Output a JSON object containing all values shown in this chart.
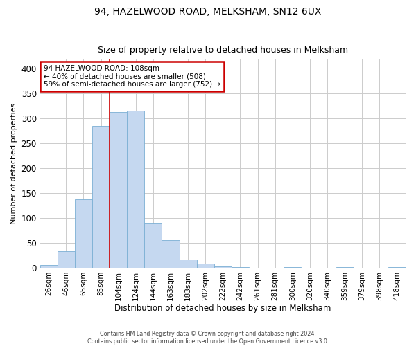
{
  "title": "94, HAZELWOOD ROAD, MELKSHAM, SN12 6UX",
  "subtitle": "Size of property relative to detached houses in Melksham",
  "xlabel": "Distribution of detached houses by size in Melksham",
  "ylabel": "Number of detached properties",
  "bar_color": "#c5d8f0",
  "bar_edge_color": "#7bafd4",
  "background_color": "#ffffff",
  "grid_color": "#cccccc",
  "annotation_line_color": "#cc0000",
  "annotation_box_color": "#cc0000",
  "categories": [
    "26sqm",
    "46sqm",
    "65sqm",
    "85sqm",
    "104sqm",
    "124sqm",
    "144sqm",
    "163sqm",
    "183sqm",
    "202sqm",
    "222sqm",
    "242sqm",
    "261sqm",
    "281sqm",
    "300sqm",
    "320sqm",
    "340sqm",
    "359sqm",
    "379sqm",
    "398sqm",
    "418sqm"
  ],
  "values": [
    5,
    33,
    137,
    285,
    313,
    315,
    90,
    56,
    16,
    8,
    3,
    1,
    0,
    0,
    1,
    0,
    0,
    1,
    0,
    0,
    2
  ],
  "ylim": [
    0,
    420
  ],
  "yticks": [
    0,
    50,
    100,
    150,
    200,
    250,
    300,
    350,
    400
  ],
  "property_bin_index": 4,
  "annotation_text_line1": "94 HAZELWOOD ROAD: 108sqm",
  "annotation_text_line2": "← 40% of detached houses are smaller (508)",
  "annotation_text_line3": "59% of semi-detached houses are larger (752) →",
  "footer_line1": "Contains HM Land Registry data © Crown copyright and database right 2024.",
  "footer_line2": "Contains public sector information licensed under the Open Government Licence v3.0."
}
